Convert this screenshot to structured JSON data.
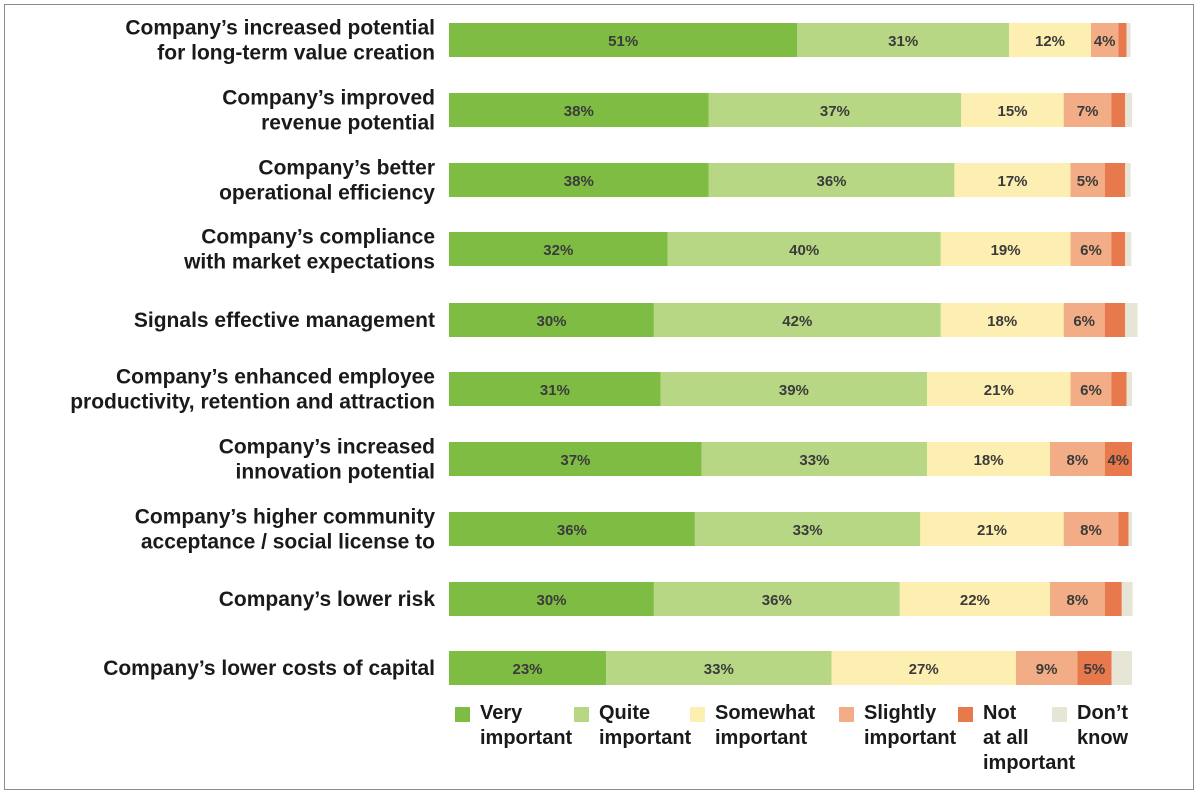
{
  "chart_data": {
    "type": "bar",
    "orientation": "horizontal",
    "stacked": true,
    "title": "",
    "xlabel": "",
    "ylabel": "",
    "xlim": [
      0,
      100
    ],
    "categories": [
      [
        "Company’s increased potential",
        "for long-term value creation"
      ],
      [
        "Company’s improved",
        "revenue potential"
      ],
      [
        "Company’s better",
        "operational efficiency"
      ],
      [
        "Company’s compliance",
        "with market expectations"
      ],
      [
        "Signals effective management"
      ],
      [
        "Company’s enhanced employee",
        "productivity, retention and attraction"
      ],
      [
        "Company’s increased",
        "innovation potential"
      ],
      [
        "Company’s higher community",
        "acceptance / social license to"
      ],
      [
        "Company’s lower risk"
      ],
      [
        "Company’s lower costs of capital"
      ]
    ],
    "series": [
      {
        "name": "Very important",
        "color": "#7ebc43",
        "values": [
          51,
          38,
          38,
          32,
          30,
          31,
          37,
          36,
          30,
          23
        ],
        "labels": [
          "51%",
          "38%",
          "38%",
          "32%",
          "30%",
          "31%",
          "37%",
          "36%",
          "30%",
          "23%"
        ]
      },
      {
        "name": "Quite important",
        "color": "#b8d784",
        "values": [
          31,
          37,
          36,
          40,
          42,
          39,
          33,
          33,
          36,
          33
        ],
        "labels": [
          "31%",
          "37%",
          "36%",
          "40%",
          "42%",
          "39%",
          "33%",
          "33%",
          "36%",
          "33%"
        ]
      },
      {
        "name": "Somewhat important",
        "color": "#fcefb1",
        "values": [
          12,
          15,
          17,
          19,
          18,
          21,
          18,
          21,
          22,
          27
        ],
        "labels": [
          "12%",
          "15%",
          "17%",
          "19%",
          "18%",
          "21%",
          "18%",
          "21%",
          "22%",
          "27%"
        ]
      },
      {
        "name": "Slightly important",
        "color": "#f2ad86",
        "values": [
          4,
          7,
          5,
          6,
          6,
          6,
          8,
          8,
          8,
          9
        ],
        "labels": [
          "4%",
          "7%",
          "5%",
          "6%",
          "6%",
          "6%",
          "8%",
          "8%",
          "8%",
          "9%"
        ]
      },
      {
        "name": "Not at all important",
        "color": "#e8794d",
        "values": [
          1.2,
          2,
          3,
          2,
          3,
          2.2,
          4,
          1.5,
          2.5,
          5
        ],
        "labels": [
          "",
          "",
          "",
          "",
          "",
          "",
          "4%",
          "",
          "",
          "5%"
        ]
      },
      {
        "name": "Don’t know",
        "color": "#e7e6d6",
        "values": [
          0.6,
          1,
          0.8,
          0.9,
          1.8,
          0.8,
          0,
          0.5,
          1.6,
          3
        ],
        "labels": [
          "",
          "",
          "",
          "",
          "",
          "",
          "",
          "",
          "",
          ""
        ]
      }
    ],
    "legend": {
      "position": "bottom-right",
      "items": [
        {
          "text": "Very\nimportant",
          "color": "#7ebc43"
        },
        {
          "text": "Quite\nimportant",
          "color": "#b8d784"
        },
        {
          "text": "Somewhat\nimportant",
          "color": "#fcefb1"
        },
        {
          "text": "Slightly\nimportant",
          "color": "#f2ad86"
        },
        {
          "text": "Not\nat all\nimportant",
          "color": "#e8794d"
        },
        {
          "text": "Don’t\nknow",
          "color": "#e7e6d6"
        }
      ]
    }
  }
}
